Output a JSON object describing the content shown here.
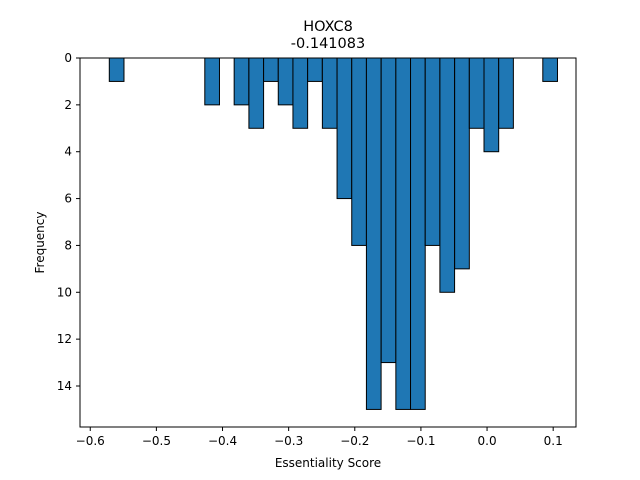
{
  "chart_data": {
    "type": "bar",
    "title": "HOXC8",
    "subtitle": "-0.141083",
    "xlabel": "Essentiality Score",
    "ylabel": "Frequency",
    "xlim": [
      -0.6155,
      0.1345
    ],
    "ylim": [
      15.75,
      0
    ],
    "y_inverted": true,
    "bin_width": 0.0222,
    "bar_color": "#1f77b4",
    "edge_color": "#000000",
    "x_ticks": [
      -0.6,
      -0.5,
      -0.4,
      -0.3,
      -0.2,
      -0.1,
      0.0,
      0.1
    ],
    "x_tick_labels": [
      "−0.6",
      "−0.5",
      "−0.4",
      "−0.3",
      "−0.2",
      "−0.1",
      "0.0",
      "0.1"
    ],
    "y_ticks": [
      0,
      2,
      4,
      6,
      8,
      10,
      12,
      14
    ],
    "y_tick_labels": [
      "0",
      "2",
      "4",
      "6",
      "8",
      "10",
      "12",
      "14"
    ],
    "bins": [
      {
        "x": -0.5712,
        "value": 1
      },
      {
        "x": -0.4268,
        "value": 2
      },
      {
        "x": -0.3824,
        "value": 2
      },
      {
        "x": -0.3601,
        "value": 3
      },
      {
        "x": -0.3379,
        "value": 1
      },
      {
        "x": -0.3157,
        "value": 2
      },
      {
        "x": -0.2935,
        "value": 3
      },
      {
        "x": -0.2713,
        "value": 1
      },
      {
        "x": -0.249,
        "value": 3
      },
      {
        "x": -0.2268,
        "value": 6
      },
      {
        "x": -0.2046,
        "value": 8
      },
      {
        "x": -0.1824,
        "value": 15
      },
      {
        "x": -0.1601,
        "value": 13
      },
      {
        "x": -0.1379,
        "value": 15
      },
      {
        "x": -0.1157,
        "value": 15
      },
      {
        "x": -0.0935,
        "value": 8
      },
      {
        "x": -0.0713,
        "value": 10
      },
      {
        "x": -0.049,
        "value": 9
      },
      {
        "x": -0.0268,
        "value": 3
      },
      {
        "x": -0.0046,
        "value": 4
      },
      {
        "x": 0.0176,
        "value": 3
      },
      {
        "x": 0.0843,
        "value": 1
      }
    ]
  }
}
